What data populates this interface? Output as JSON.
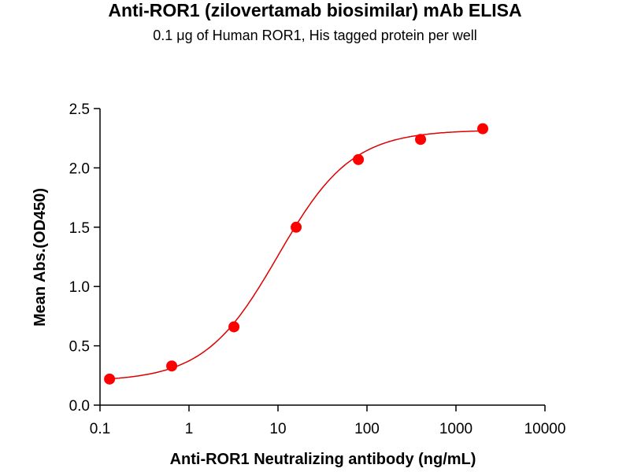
{
  "chart_data": {
    "type": "scatter",
    "title": "Anti-ROR1 (zilovertamab biosimilar) mAb ELISA",
    "subtitle": "0.1 μg of Human ROR1, His tagged protein per well",
    "xlabel": "Anti-ROR1 Neutralizing antibody (ng/mL)",
    "ylabel": "Mean Abs.(OD450)",
    "xscale": "log",
    "xlim": [
      0.1,
      10000
    ],
    "ylim": [
      0,
      2.5
    ],
    "xticks": [
      0.1,
      1,
      10,
      100,
      1000,
      10000
    ],
    "xtick_labels": [
      "0.1",
      "1",
      "10",
      "100",
      "1000",
      "10000"
    ],
    "yticks": [
      0,
      0.5,
      1,
      1.5,
      2,
      2.5
    ],
    "ytick_labels": [
      "0.0",
      "0.5",
      "1.0",
      "1.5",
      "2.0",
      "2.5"
    ],
    "grid": false,
    "series": [
      {
        "name": "Anti-ROR1",
        "color": "#ff0000",
        "x": [
          0.128,
          0.64,
          3.2,
          16,
          80,
          400,
          2000
        ],
        "y": [
          0.22,
          0.33,
          0.66,
          1.5,
          2.07,
          2.24,
          2.33
        ],
        "fit": {
          "model": "4PL",
          "bottom": 0.2,
          "top": 2.32,
          "ec50": 10,
          "hill": 1.05,
          "color": "#dd0000"
        }
      }
    ]
  }
}
